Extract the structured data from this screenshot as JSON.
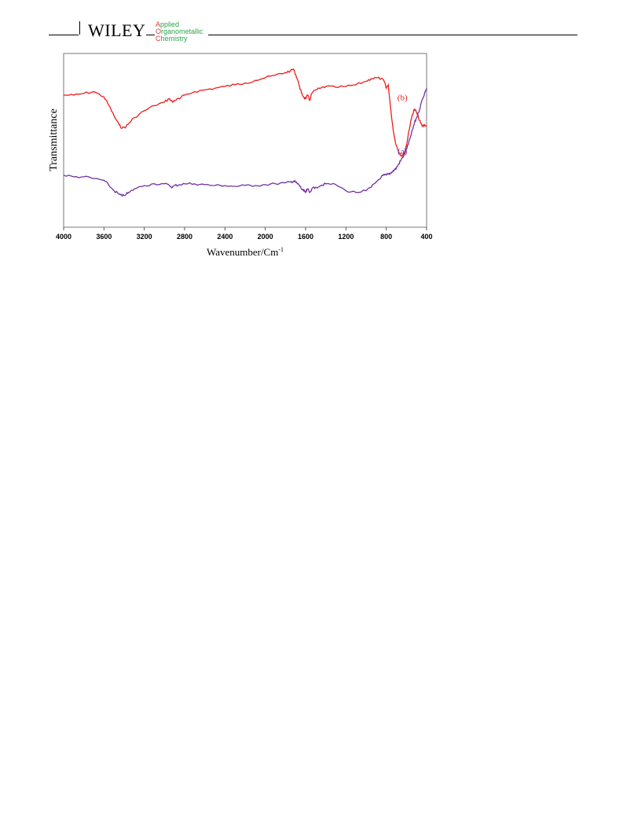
{
  "header": {
    "brand": "WILEY",
    "journal_lines": [
      {
        "initial": "A",
        "rest": "pplied"
      },
      {
        "initial": "O",
        "rest": "rganometallic"
      },
      {
        "initial": "C",
        "rest": "hemistry"
      }
    ]
  },
  "chart_data": {
    "type": "line",
    "xlabel": "Wavenumber/Cm",
    "xlabel_superscript": "-1",
    "ylabel": "Transmittance",
    "xlim": [
      4000,
      400
    ],
    "x_reversed": true,
    "xticks": [
      4000,
      3600,
      3200,
      2800,
      2400,
      2000,
      1600,
      1200,
      800,
      400
    ],
    "y_ticks_shown": false,
    "grid": false,
    "legend": "inline labels near right end",
    "series": [
      {
        "name": "(b)",
        "color": "#ee1c1c",
        "x": [
          4000,
          3900,
          3800,
          3700,
          3600,
          3550,
          3500,
          3450,
          3420,
          3380,
          3350,
          3300,
          3200,
          3100,
          3000,
          2950,
          2920,
          2900,
          2850,
          2800,
          2700,
          2600,
          2500,
          2400,
          2300,
          2200,
          2100,
          2000,
          1900,
          1800,
          1750,
          1720,
          1700,
          1680,
          1660,
          1640,
          1620,
          1600,
          1580,
          1560,
          1540,
          1500,
          1450,
          1400,
          1300,
          1200,
          1100,
          1000,
          950,
          900,
          850,
          820,
          800,
          780,
          760,
          740,
          720,
          700,
          680,
          660,
          640,
          620,
          600,
          580,
          560,
          540,
          520,
          500,
          480,
          460,
          440,
          420,
          400
        ],
        "y": [
          0.76,
          0.76,
          0.77,
          0.78,
          0.75,
          0.7,
          0.64,
          0.59,
          0.57,
          0.58,
          0.6,
          0.63,
          0.67,
          0.7,
          0.72,
          0.74,
          0.72,
          0.73,
          0.74,
          0.76,
          0.78,
          0.79,
          0.8,
          0.81,
          0.82,
          0.83,
          0.845,
          0.86,
          0.875,
          0.89,
          0.9,
          0.91,
          0.88,
          0.85,
          0.81,
          0.77,
          0.75,
          0.74,
          0.76,
          0.73,
          0.77,
          0.79,
          0.8,
          0.81,
          0.805,
          0.81,
          0.82,
          0.84,
          0.855,
          0.86,
          0.855,
          0.84,
          0.8,
          0.82,
          0.7,
          0.6,
          0.52,
          0.47,
          0.44,
          0.42,
          0.41,
          0.43,
          0.47,
          0.54,
          0.6,
          0.65,
          0.68,
          0.66,
          0.63,
          0.6,
          0.58,
          0.59,
          0.58
        ]
      },
      {
        "name": "(a)",
        "color": "#7030a0",
        "x": [
          4000,
          3900,
          3800,
          3700,
          3600,
          3550,
          3500,
          3450,
          3420,
          3380,
          3350,
          3300,
          3200,
          3100,
          3000,
          2950,
          2920,
          2900,
          2850,
          2800,
          2700,
          2600,
          2500,
          2400,
          2300,
          2200,
          2100,
          2000,
          1900,
          1800,
          1750,
          1720,
          1700,
          1680,
          1660,
          1640,
          1620,
          1600,
          1580,
          1560,
          1540,
          1500,
          1450,
          1400,
          1300,
          1200,
          1100,
          1000,
          950,
          900,
          850,
          820,
          800,
          780,
          760,
          740,
          720,
          700,
          680,
          660,
          640,
          620,
          600,
          580,
          560,
          540,
          520,
          500,
          480,
          460,
          440,
          420,
          400
        ],
        "y": [
          0.3,
          0.29,
          0.29,
          0.28,
          0.27,
          0.24,
          0.21,
          0.19,
          0.18,
          0.19,
          0.2,
          0.22,
          0.24,
          0.25,
          0.25,
          0.24,
          0.23,
          0.24,
          0.245,
          0.25,
          0.25,
          0.245,
          0.24,
          0.24,
          0.235,
          0.24,
          0.24,
          0.245,
          0.25,
          0.255,
          0.26,
          0.265,
          0.26,
          0.25,
          0.24,
          0.22,
          0.21,
          0.2,
          0.22,
          0.2,
          0.22,
          0.23,
          0.24,
          0.25,
          0.245,
          0.21,
          0.2,
          0.21,
          0.23,
          0.26,
          0.29,
          0.3,
          0.3,
          0.305,
          0.31,
          0.32,
          0.33,
          0.34,
          0.36,
          0.38,
          0.4,
          0.42,
          0.45,
          0.48,
          0.52,
          0.56,
          0.6,
          0.63,
          0.66,
          0.7,
          0.74,
          0.77,
          0.8
        ]
      }
    ]
  }
}
